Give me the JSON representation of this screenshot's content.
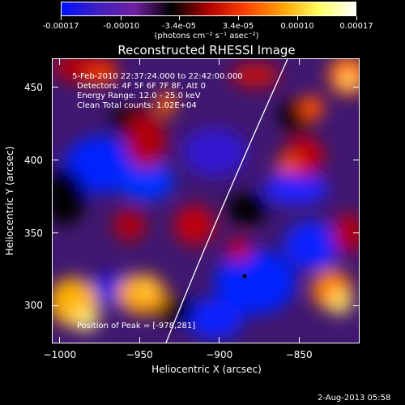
{
  "colorbar": {
    "tick_labels": [
      "-0.00017",
      "-0.00010",
      "-3.4e-05",
      "3.4e-05",
      "0.00010",
      "0.00017"
    ],
    "units": "(photons cm⁻² s⁻¹ asec⁻²)",
    "colors": [
      "#0010ff",
      "#4020c0",
      "#7020a0",
      "#000000",
      "#b00000",
      "#ff4000",
      "#ffa000",
      "#ffff60",
      "#ffffff"
    ]
  },
  "plot": {
    "title": "Reconstructed RHESSI Image",
    "annotations": {
      "time": "5-Feb-2010 22:37:24.000 to 22:42:00.000",
      "detectors": "Detectors: 4F 5F 6F 7F 8F, Att 0",
      "energy": "Energy Range: 12.0 - 25.0 keV",
      "method": "Clean    Total counts: 1.02E+04",
      "peak": "Position of Peak = [-978,281]"
    }
  },
  "chart_data": {
    "type": "heatmap",
    "title": "Reconstructed RHESSI Image",
    "xlabel": "Heliocentric X (arcsec)",
    "ylabel": "Heliocentric Y (arcsec)",
    "xlim": [
      -1005,
      -812
    ],
    "ylim": [
      274,
      470
    ],
    "x_ticks": [
      "-1000",
      "-950",
      "-900",
      "-850"
    ],
    "y_ticks": [
      "300",
      "350",
      "400",
      "450"
    ],
    "colorbar_range": [
      -0.00017,
      0.00017
    ],
    "peak_position": [
      -978,
      281
    ]
  },
  "footer": {
    "date": "2-Aug-2013 05:58"
  }
}
